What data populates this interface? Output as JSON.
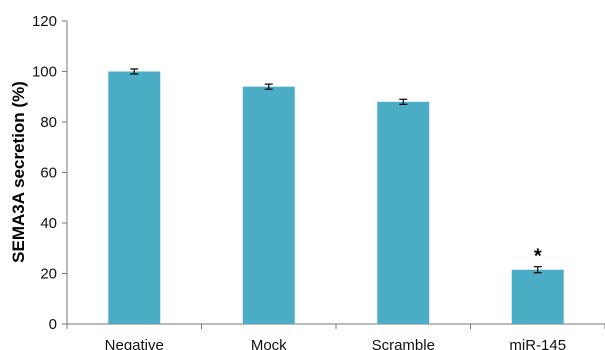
{
  "chart_data": {
    "type": "bar",
    "categories": [
      "Negative",
      "Mock",
      "Scramble",
      "miR-145"
    ],
    "values": [
      100,
      94,
      88,
      21.5
    ],
    "errors": [
      1,
      1,
      1,
      1.2
    ],
    "ylabel": "SEMA3A secretion (%)",
    "xlabel": "",
    "ylim": [
      0,
      120
    ],
    "yticks": [
      "0",
      "20",
      "40",
      "60",
      "80",
      "100",
      "120"
    ],
    "annotations": [
      {
        "category": "miR-145",
        "text": "*"
      }
    ],
    "bar_color": "#4bacc6",
    "grid": false,
    "legend": "none"
  }
}
